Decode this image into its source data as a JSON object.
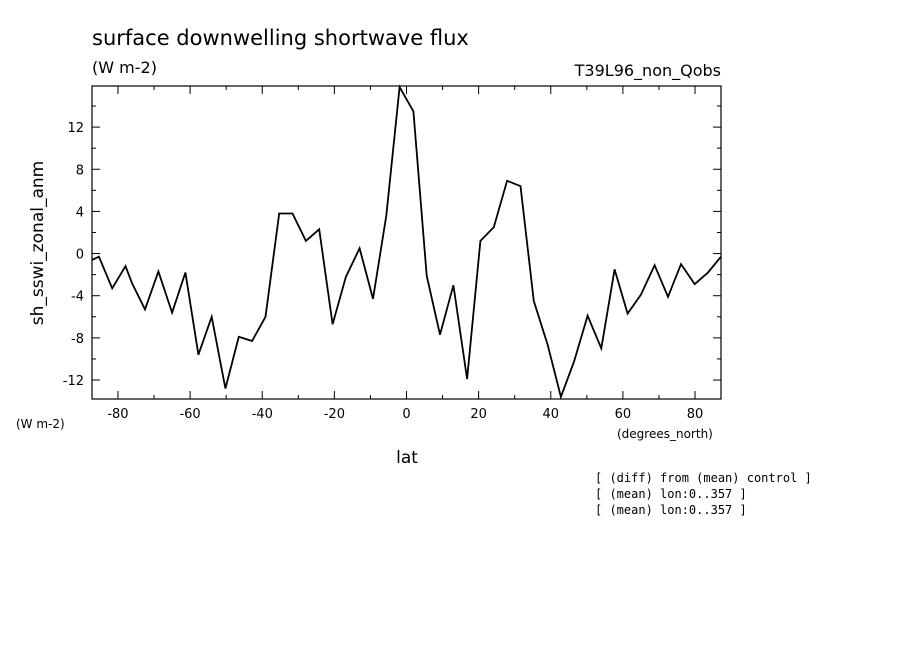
{
  "chart_data": {
    "type": "line",
    "title": "surface downwelling shortwave flux",
    "subtitle": "(W m-2)",
    "run_label": "T39L96_non_Qobs",
    "ylabel": "sh_sswi_zonal_anm",
    "xlabel": "lat",
    "y_units": "(W m-2)",
    "x_units": "(degrees_north)",
    "xlim": [
      -87.2,
      87.2
    ],
    "ylim": [
      -13.8,
      15.9
    ],
    "x_ticks": [
      -80,
      -60,
      -40,
      -20,
      0,
      20,
      40,
      60,
      80
    ],
    "x_tick_labels": [
      "-80",
      "-60",
      "-40",
      "-20",
      "0",
      "20",
      "40",
      "60",
      "80"
    ],
    "y_ticks": [
      -12,
      -8,
      -4,
      0,
      4,
      8,
      12
    ],
    "y_tick_labels": [
      "-12",
      "-8",
      "-4",
      "0",
      "4",
      "8",
      "12"
    ],
    "grid": false,
    "series": [
      {
        "x": [
          -87.2,
          -85.3,
          -81.6,
          -77.9,
          -76.1,
          -72.5,
          -68.8,
          -65.0,
          -61.3,
          -57.7,
          -54.0,
          -50.2,
          -46.5,
          -42.8,
          -39.1,
          -35.3,
          -31.6,
          -27.9,
          -24.2,
          -20.5,
          -16.8,
          -13.0,
          -9.3,
          -5.6,
          -1.9,
          1.9,
          5.6,
          9.3,
          13.0,
          16.8,
          20.5,
          24.2,
          27.9,
          31.6,
          35.3,
          39.1,
          42.8,
          46.5,
          50.2,
          54.0,
          57.7,
          61.3,
          65.0,
          68.8,
          72.5,
          76.1,
          79.9,
          83.6,
          87.2
        ],
        "values": [
          -0.6,
          -0.3,
          -3.3,
          -1.2,
          -2.8,
          -5.3,
          -1.7,
          -5.6,
          -1.8,
          -9.6,
          -6.0,
          -12.8,
          -7.9,
          -8.3,
          -6.0,
          3.8,
          3.8,
          1.2,
          2.3,
          -6.7,
          -2.2,
          0.5,
          -4.3,
          3.6,
          15.8,
          13.5,
          -2.1,
          -7.7,
          -3.0,
          -11.9,
          1.2,
          2.5,
          6.9,
          6.4,
          -4.5,
          -8.6,
          -13.6,
          -10.2,
          -5.9,
          -9.0,
          -1.5,
          -5.7,
          -3.9,
          -1.1,
          -4.1,
          -1.0,
          -2.9,
          -1.8,
          -0.3
        ]
      }
    ]
  },
  "notes": [
    "[ (diff) from (mean) control ]",
    "[ (mean) lon:0..357 ]",
    "[ (mean) lon:0..357 ]"
  ]
}
